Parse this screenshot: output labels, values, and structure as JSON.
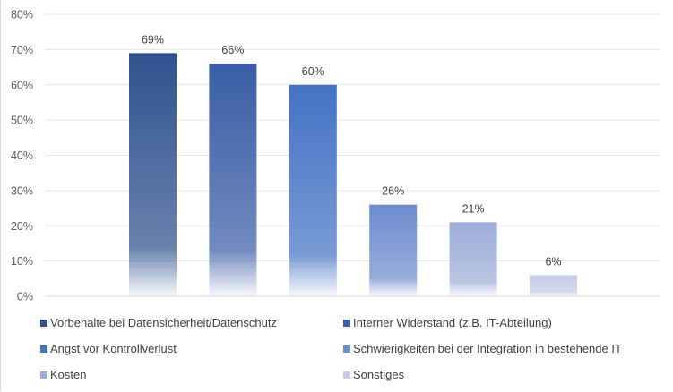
{
  "chart_data": {
    "type": "bar",
    "title": "",
    "xlabel": "",
    "ylabel": "",
    "ylim": [
      0,
      0.8
    ],
    "yticks": [
      "0%",
      "10%",
      "20%",
      "30%",
      "40%",
      "50%",
      "60%",
      "70%",
      "80%"
    ],
    "grid": true,
    "legend_placement": "bottom",
    "series": [
      {
        "name": "Vorbehalte bei Datensicherheit/Datenschutz",
        "value": 0.69,
        "label": "69%",
        "color": "#2f528f"
      },
      {
        "name": "Interner Widerstand (z.B. IT-Abteilung)",
        "value": 0.66,
        "label": "66%",
        "color": "#3a5da6"
      },
      {
        "name": "Angst vor Kontrollverlust",
        "value": 0.6,
        "label": "60%",
        "color": "#4472c4"
      },
      {
        "name": "Schwierigkeiten bei der Integration in bestehende IT",
        "value": 0.26,
        "label": "26%",
        "color": "#6d8cce"
      },
      {
        "name": "Kosten",
        "value": 0.21,
        "label": "21%",
        "color": "#9dadd9"
      },
      {
        "name": "Sonstiges",
        "value": 0.06,
        "label": "6%",
        "color": "#c3cbe6"
      }
    ]
  }
}
